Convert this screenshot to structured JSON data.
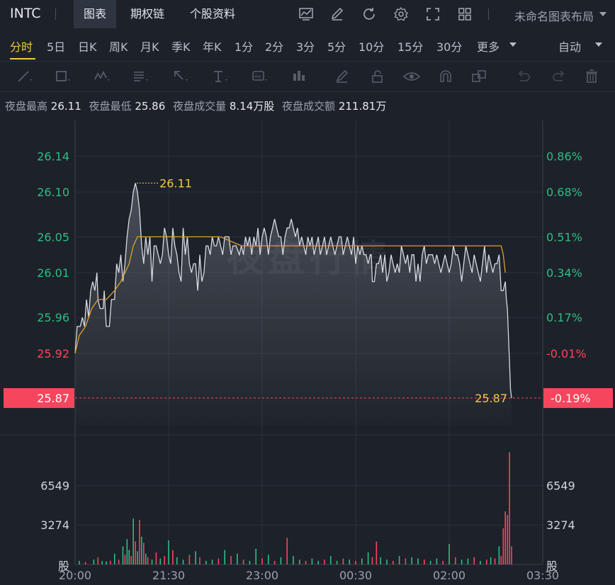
{
  "topbar": {
    "ticker": "INTC",
    "tabs": [
      {
        "label": "图表",
        "active": true
      },
      {
        "label": "期权链",
        "active": false
      },
      {
        "label": "个股资料",
        "active": false
      }
    ],
    "tool_icons": [
      "chart-indicator-icon",
      "pen-icon",
      "refresh-icon",
      "gear-icon",
      "fullscreen-icon",
      "grid-icon"
    ],
    "layout_label": "未命名图表布局"
  },
  "timeframes": {
    "items": [
      "分时",
      "5日",
      "日K",
      "周K",
      "月K",
      "季K",
      "年K",
      "1分",
      "2分",
      "3分",
      "5分",
      "10分",
      "15分",
      "30分",
      "更多"
    ],
    "active": "分时",
    "auto_label": "自动"
  },
  "drawing_tools": [
    "line-tool-icon",
    "rect-tool-icon",
    "wave-tool-icon",
    "fib-tool-icon",
    "arrow-tool-icon",
    "text-tool-icon",
    "note-tool-icon",
    "bar-pattern-icon",
    "brush-icon",
    "lock-icon",
    "eye-icon",
    "magnet-icon",
    "layers-icon",
    "undo-icon",
    "redo-icon",
    "trash-icon"
  ],
  "stats": {
    "high_label": "夜盘最高",
    "high": "26.11",
    "low_label": "夜盘最低",
    "low": "25.86",
    "vol_label": "夜盘成交量",
    "vol": "8.14万股",
    "amount_label": "夜盘成交额",
    "amount": "211.81万"
  },
  "colors": {
    "up": "#2ebd85",
    "down": "#f6465d",
    "price": "#d7dbe0",
    "avg": "#e0a030",
    "marker": "#f2c94c"
  },
  "chart_data": {
    "type": "line",
    "watermark": "夜盘行情",
    "price_ticks": [
      "26.14",
      "26.10",
      "26.05",
      "26.01",
      "25.96",
      "25.92"
    ],
    "pct_ticks": [
      "0.86%",
      "0.68%",
      "0.51%",
      "0.34%",
      "0.17%",
      "-0.01%"
    ],
    "time_ticks": [
      "20:00",
      "21:30",
      "23:00",
      "00:30",
      "02:00",
      "03:30"
    ],
    "vol_ticks": [
      "6549",
      "3274"
    ],
    "vol_unit": "股",
    "current_price": "25.87",
    "current_pct": "-0.19%",
    "high_marker": "26.11",
    "low_marker": "25.87",
    "x_minutes_range": [
      0,
      450
    ],
    "price_range": [
      25.84,
      26.18
    ],
    "price": [
      [
        0,
        25.92
      ],
      [
        2,
        25.95
      ],
      [
        5,
        25.95
      ],
      [
        7,
        25.96
      ],
      [
        9,
        25.95
      ],
      [
        11,
        25.98
      ],
      [
        13,
        25.96
      ],
      [
        15,
        25.99
      ],
      [
        17,
        26.0
      ],
      [
        19,
        25.99
      ],
      [
        21,
        26.01
      ],
      [
        22,
        25.98
      ],
      [
        24,
        25.97
      ],
      [
        27,
        25.97
      ],
      [
        28,
        25.99
      ],
      [
        30,
        25.95
      ],
      [
        33,
        25.95
      ],
      [
        35,
        25.98
      ],
      [
        38,
        25.98
      ],
      [
        40,
        26.02
      ],
      [
        42,
        26.01
      ],
      [
        44,
        26.03
      ],
      [
        46,
        26.0
      ],
      [
        48,
        26.02
      ],
      [
        50,
        26.05
      ],
      [
        52,
        26.07
      ],
      [
        54,
        26.08
      ],
      [
        56,
        26.1
      ],
      [
        58,
        26.11
      ],
      [
        60,
        26.1
      ],
      [
        62,
        26.08
      ],
      [
        64,
        26.04
      ],
      [
        66,
        26.02
      ],
      [
        68,
        26.05
      ],
      [
        70,
        26.03
      ],
      [
        72,
        26.05
      ],
      [
        74,
        26.0
      ],
      [
        76,
        26.04
      ],
      [
        78,
        26.04
      ],
      [
        80,
        26.03
      ],
      [
        82,
        26.02
      ],
      [
        84,
        26.03
      ],
      [
        86,
        26.06
      ],
      [
        88,
        26.05
      ],
      [
        90,
        26.03
      ],
      [
        92,
        26.02
      ],
      [
        94,
        26.06
      ],
      [
        96,
        26.04
      ],
      [
        98,
        26.03
      ],
      [
        100,
        26.01
      ],
      [
        102,
        26.0
      ],
      [
        104,
        26.06
      ],
      [
        106,
        26.03
      ],
      [
        108,
        26.05
      ],
      [
        110,
        26.02
      ],
      [
        112,
        26.01
      ],
      [
        114,
        26.02
      ],
      [
        116,
        26.02
      ],
      [
        118,
        25.99
      ],
      [
        120,
        26.03
      ],
      [
        122,
        26.0
      ],
      [
        124,
        26.01
      ],
      [
        126,
        26.04
      ],
      [
        128,
        26.04
      ],
      [
        130,
        26.03
      ],
      [
        132,
        26.05
      ],
      [
        134,
        26.04
      ],
      [
        136,
        26.04
      ],
      [
        138,
        26.05
      ],
      [
        140,
        26.04
      ],
      [
        142,
        26.03
      ],
      [
        144,
        26.05
      ],
      [
        146,
        26.05
      ],
      [
        148,
        26.05
      ],
      [
        150,
        26.03
      ],
      [
        152,
        26.04
      ],
      [
        155,
        26.04
      ],
      [
        158,
        26.03
      ],
      [
        160,
        26.04
      ],
      [
        162,
        26.03
      ],
      [
        164,
        26.05
      ],
      [
        166,
        26.04
      ],
      [
        168,
        26.05
      ],
      [
        170,
        26.03
      ],
      [
        172,
        26.05
      ],
      [
        174,
        26.04
      ],
      [
        176,
        26.06
      ],
      [
        178,
        26.03
      ],
      [
        180,
        26.05
      ],
      [
        182,
        26.06
      ],
      [
        184,
        26.05
      ],
      [
        186,
        26.03
      ],
      [
        188,
        26.05
      ],
      [
        190,
        26.06
      ],
      [
        192,
        26.07
      ],
      [
        194,
        26.06
      ],
      [
        196,
        26.05
      ],
      [
        198,
        26.05
      ],
      [
        200,
        26.03
      ],
      [
        202,
        26.05
      ],
      [
        204,
        26.06
      ],
      [
        206,
        26.06
      ],
      [
        208,
        26.07
      ],
      [
        210,
        26.06
      ],
      [
        212,
        26.05
      ],
      [
        214,
        26.06
      ],
      [
        216,
        26.04
      ],
      [
        218,
        26.05
      ],
      [
        220,
        26.04
      ],
      [
        222,
        26.03
      ],
      [
        224,
        26.05
      ],
      [
        226,
        26.04
      ],
      [
        228,
        26.05
      ],
      [
        230,
        26.03
      ],
      [
        232,
        26.04
      ],
      [
        234,
        26.05
      ],
      [
        236,
        26.03
      ],
      [
        238,
        26.04
      ],
      [
        240,
        26.05
      ],
      [
        242,
        26.03
      ],
      [
        244,
        26.04
      ],
      [
        246,
        26.05
      ],
      [
        248,
        26.04
      ],
      [
        250,
        26.03
      ],
      [
        252,
        26.04
      ],
      [
        254,
        26.05
      ],
      [
        256,
        26.05
      ],
      [
        258,
        26.03
      ],
      [
        260,
        26.04
      ],
      [
        262,
        26.05
      ],
      [
        264,
        26.04
      ],
      [
        266,
        26.03
      ],
      [
        268,
        26.05
      ],
      [
        270,
        26.02
      ],
      [
        272,
        26.04
      ],
      [
        274,
        26.03
      ],
      [
        276,
        26.04
      ],
      [
        278,
        26.03
      ],
      [
        280,
        26.03
      ],
      [
        282,
        26.02
      ],
      [
        284,
        26.03
      ],
      [
        285,
        26.03
      ],
      [
        286,
        26.0
      ],
      [
        288,
        26.0
      ],
      [
        290,
        26.02
      ],
      [
        292,
        26.02
      ],
      [
        294,
        26.03
      ],
      [
        296,
        26.01
      ],
      [
        298,
        26.03
      ],
      [
        300,
        26.0
      ],
      [
        302,
        26.01
      ],
      [
        304,
        26.03
      ],
      [
        306,
        26.02
      ],
      [
        308,
        26.01
      ],
      [
        310,
        26.02
      ],
      [
        312,
        26.01
      ],
      [
        314,
        26.04
      ],
      [
        316,
        26.03
      ],
      [
        318,
        26.02
      ],
      [
        320,
        26.03
      ],
      [
        322,
        26.01
      ],
      [
        324,
        26.03
      ],
      [
        326,
        26.03
      ],
      [
        328,
        26.0
      ],
      [
        330,
        26.02
      ],
      [
        332,
        26.0
      ],
      [
        334,
        26.03
      ],
      [
        336,
        26.04
      ],
      [
        338,
        26.02
      ],
      [
        340,
        26.03
      ],
      [
        342,
        26.03
      ],
      [
        344,
        26.03
      ],
      [
        346,
        26.02
      ],
      [
        348,
        26.03
      ],
      [
        350,
        26.02
      ],
      [
        352,
        26.01
      ],
      [
        354,
        26.02
      ],
      [
        356,
        26.03
      ],
      [
        358,
        26.02
      ],
      [
        360,
        26.01
      ],
      [
        362,
        26.02
      ],
      [
        364,
        26.04
      ],
      [
        366,
        26.03
      ],
      [
        368,
        26.03
      ],
      [
        370,
        26.02
      ],
      [
        372,
        26.0
      ],
      [
        374,
        26.02
      ],
      [
        376,
        26.04
      ],
      [
        378,
        26.03
      ],
      [
        380,
        26.02
      ],
      [
        382,
        26.01
      ],
      [
        384,
        26.03
      ],
      [
        386,
        26.02
      ],
      [
        388,
        26.01
      ],
      [
        390,
        26.0
      ],
      [
        392,
        26.02
      ],
      [
        394,
        26.04
      ],
      [
        396,
        26.01
      ],
      [
        398,
        26.03
      ],
      [
        400,
        26.02
      ],
      [
        402,
        26.01
      ],
      [
        404,
        26.02
      ],
      [
        406,
        26.02
      ],
      [
        408,
        26.03
      ],
      [
        409,
        26.01
      ],
      [
        410,
        25.99
      ],
      [
        412,
        25.99
      ],
      [
        414,
        26.0
      ],
      [
        415,
        25.98
      ],
      [
        416,
        25.97
      ],
      [
        417,
        25.94
      ],
      [
        418,
        25.91
      ],
      [
        419,
        25.88
      ],
      [
        420,
        25.87
      ]
    ],
    "avg": [
      [
        0,
        25.92
      ],
      [
        4,
        25.94
      ],
      [
        10,
        25.95
      ],
      [
        16,
        25.97
      ],
      [
        22,
        25.98
      ],
      [
        30,
        25.98
      ],
      [
        38,
        25.99
      ],
      [
        44,
        26.0
      ],
      [
        48,
        26.01
      ],
      [
        52,
        26.02
      ],
      [
        56,
        26.04
      ],
      [
        60,
        26.05
      ],
      [
        64,
        26.05
      ],
      [
        70,
        26.05
      ],
      [
        80,
        26.05
      ],
      [
        100,
        26.05
      ],
      [
        120,
        26.05
      ],
      [
        140,
        26.05
      ],
      [
        160,
        26.04
      ],
      [
        180,
        26.04
      ],
      [
        200,
        26.04
      ],
      [
        230,
        26.04
      ],
      [
        260,
        26.04
      ],
      [
        300,
        26.04
      ],
      [
        340,
        26.04
      ],
      [
        380,
        26.04
      ],
      [
        400,
        26.04
      ],
      [
        408,
        26.04
      ],
      [
        410,
        26.04
      ],
      [
        412,
        26.03
      ],
      [
        414,
        26.01
      ]
    ],
    "vol_range": [
      0,
      9800
    ],
    "volume": [
      [
        4,
        300,
        "up"
      ],
      [
        10,
        200,
        "down"
      ],
      [
        18,
        400,
        "up"
      ],
      [
        22,
        600,
        "down"
      ],
      [
        26,
        300,
        "up"
      ],
      [
        30,
        250,
        "up"
      ],
      [
        34,
        300,
        "down"
      ],
      [
        38,
        900,
        "up"
      ],
      [
        42,
        400,
        "down"
      ],
      [
        46,
        1500,
        "up"
      ],
      [
        48,
        800,
        "down"
      ],
      [
        50,
        2100,
        "up"
      ],
      [
        52,
        1200,
        "up"
      ],
      [
        54,
        700,
        "down"
      ],
      [
        56,
        3800,
        "up"
      ],
      [
        58,
        1900,
        "down"
      ],
      [
        60,
        1100,
        "up"
      ],
      [
        62,
        3700,
        "down"
      ],
      [
        64,
        2300,
        "up"
      ],
      [
        66,
        1800,
        "down"
      ],
      [
        68,
        900,
        "up"
      ],
      [
        70,
        600,
        "down"
      ],
      [
        74,
        400,
        "up"
      ],
      [
        78,
        1000,
        "down"
      ],
      [
        82,
        500,
        "up"
      ],
      [
        86,
        700,
        "down"
      ],
      [
        90,
        2000,
        "up"
      ],
      [
        94,
        1200,
        "down"
      ],
      [
        98,
        600,
        "up"
      ],
      [
        104,
        400,
        "up"
      ],
      [
        110,
        800,
        "down"
      ],
      [
        116,
        1100,
        "up"
      ],
      [
        120,
        600,
        "down"
      ],
      [
        126,
        300,
        "up"
      ],
      [
        132,
        400,
        "up"
      ],
      [
        138,
        500,
        "down"
      ],
      [
        144,
        1200,
        "up"
      ],
      [
        150,
        700,
        "down"
      ],
      [
        156,
        900,
        "up"
      ],
      [
        162,
        400,
        "down"
      ],
      [
        168,
        300,
        "up"
      ],
      [
        174,
        1300,
        "up"
      ],
      [
        180,
        500,
        "down"
      ],
      [
        186,
        800,
        "up"
      ],
      [
        192,
        300,
        "down"
      ],
      [
        198,
        600,
        "up"
      ],
      [
        204,
        2200,
        "down"
      ],
      [
        210,
        700,
        "up"
      ],
      [
        216,
        400,
        "up"
      ],
      [
        222,
        300,
        "down"
      ],
      [
        228,
        500,
        "up"
      ],
      [
        234,
        300,
        "up"
      ],
      [
        240,
        400,
        "down"
      ],
      [
        246,
        700,
        "up"
      ],
      [
        252,
        300,
        "up"
      ],
      [
        258,
        500,
        "down"
      ],
      [
        264,
        400,
        "up"
      ],
      [
        270,
        300,
        "down"
      ],
      [
        276,
        500,
        "up"
      ],
      [
        282,
        1000,
        "up"
      ],
      [
        286,
        600,
        "down"
      ],
      [
        290,
        1900,
        "down"
      ],
      [
        294,
        600,
        "up"
      ],
      [
        300,
        400,
        "up"
      ],
      [
        306,
        300,
        "down"
      ],
      [
        312,
        700,
        "up"
      ],
      [
        318,
        500,
        "down"
      ],
      [
        324,
        600,
        "up"
      ],
      [
        330,
        500,
        "up"
      ],
      [
        336,
        400,
        "down"
      ],
      [
        342,
        300,
        "up"
      ],
      [
        348,
        500,
        "up"
      ],
      [
        354,
        300,
        "down"
      ],
      [
        360,
        1700,
        "up"
      ],
      [
        366,
        600,
        "down"
      ],
      [
        372,
        400,
        "up"
      ],
      [
        378,
        500,
        "up"
      ],
      [
        384,
        600,
        "down"
      ],
      [
        390,
        300,
        "up"
      ],
      [
        396,
        400,
        "down"
      ],
      [
        400,
        600,
        "up"
      ],
      [
        404,
        500,
        "down"
      ],
      [
        408,
        1500,
        "up"
      ],
      [
        410,
        700,
        "down"
      ],
      [
        412,
        3000,
        "down"
      ],
      [
        414,
        4400,
        "down"
      ],
      [
        416,
        4100,
        "down"
      ],
      [
        418,
        9300,
        "down"
      ],
      [
        420,
        1500,
        "down"
      ]
    ]
  }
}
